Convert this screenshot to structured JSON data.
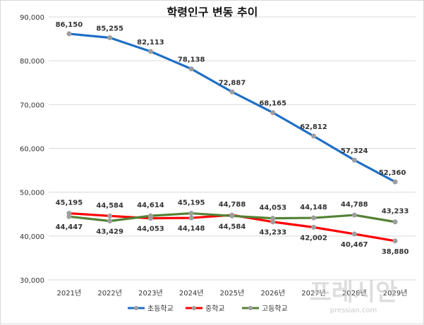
{
  "chart_data": {
    "type": "line",
    "title": "학령인구 변동 추이",
    "categories": [
      "2021년",
      "2022년",
      "2023년",
      "2024년",
      "2025년",
      "2026년",
      "2027년",
      "2028년",
      "2029년"
    ],
    "ylim": [
      30000,
      90000
    ],
    "yticks": [
      "30,000",
      "40,000",
      "50,000",
      "60,000",
      "70,000",
      "80,000",
      "90,000"
    ],
    "yticks_values": [
      30000,
      40000,
      50000,
      60000,
      70000,
      80000,
      90000
    ],
    "grid": true,
    "legend_position": "bottom",
    "series": [
      {
        "name": "초등학교",
        "color": "#1f6fc5",
        "values": [
          86150,
          85255,
          82113,
          78138,
          72887,
          68165,
          62812,
          57324,
          52360
        ],
        "labels": [
          "86,150",
          "85,255",
          "82,113",
          "78,138",
          "72,887",
          "68,165",
          "62,812",
          "57,324",
          "52,360"
        ]
      },
      {
        "name": "중학교",
        "color": "#ff0000",
        "values": [
          45195,
          44584,
          44053,
          44148,
          44788,
          43233,
          42002,
          40467,
          38880
        ],
        "labels": [
          "45,195",
          "44,584",
          "44,053",
          "44,148",
          "44,788",
          "43,233",
          "42,002",
          "40,467",
          "38,880"
        ]
      },
      {
        "name": "고등학교",
        "color": "#548235",
        "values": [
          44447,
          43429,
          44614,
          45195,
          44584,
          44053,
          44148,
          44788,
          43233
        ],
        "labels": [
          "44,447",
          "43,429",
          "44,614",
          "45,195",
          "44,584",
          "44,053",
          "44,148",
          "44,788",
          "43,233"
        ]
      }
    ]
  },
  "watermark": {
    "logo_text": "프레시안",
    "site_text": "pressian.com"
  }
}
